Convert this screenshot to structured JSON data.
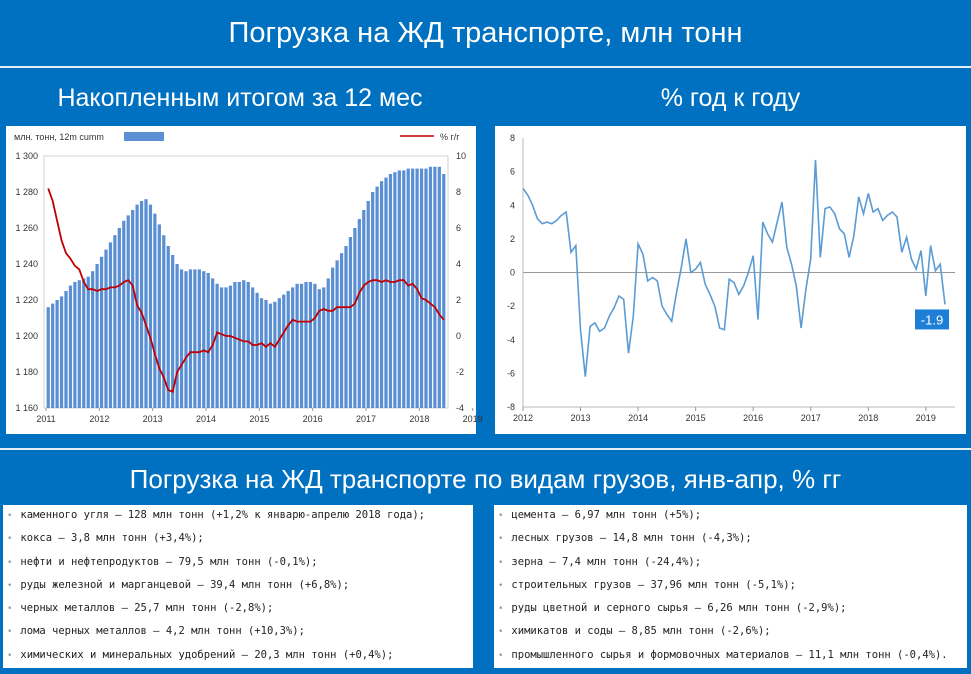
{
  "header": {
    "title": "Погрузка на ЖД транспорте, млн тонн",
    "left_subtitle": "Накопленным итогом за 12 мес",
    "right_subtitle": "% год к году",
    "section_title": "Погрузка на ЖД транспорте по видам грузов, янв-апр, % гг"
  },
  "colors": {
    "background": "#0070c0",
    "bar": "#5b8fd4",
    "line_red": "#c00000",
    "line_blue": "#5b9bd5",
    "label_box": "#1f7fd6"
  },
  "chart_data": [
    {
      "type": "bar",
      "legend_bar": "млн. тонн, 12m cumm",
      "legend_line": "% г/г",
      "x_tick_labels": [
        "2011",
        "2012",
        "2013",
        "2014",
        "2015",
        "2016",
        "2017",
        "2018",
        "2019"
      ],
      "y_left_ticks": [
        "1 160",
        "1 180",
        "1 200",
        "1 220",
        "1 240",
        "1 260",
        "1 280",
        "1 300"
      ],
      "y_right_ticks": [
        "-4",
        "-2",
        "0",
        "2",
        "4",
        "6",
        "8",
        "10"
      ],
      "ylim_left": [
        1160,
        1300
      ],
      "ylim_right": [
        -4,
        10
      ],
      "bar_series": [
        1216,
        1218,
        1220,
        1222,
        1225,
        1228,
        1230,
        1231,
        1232,
        1233,
        1236,
        1240,
        1244,
        1248,
        1252,
        1256,
        1260,
        1264,
        1267,
        1270,
        1273,
        1275,
        1276,
        1273,
        1268,
        1262,
        1256,
        1250,
        1245,
        1240,
        1237,
        1236,
        1237,
        1237,
        1237,
        1236,
        1235,
        1232,
        1229,
        1227,
        1227,
        1228,
        1230,
        1230,
        1231,
        1230,
        1227,
        1224,
        1221,
        1220,
        1218,
        1219,
        1221,
        1223,
        1225,
        1227,
        1229,
        1229,
        1230,
        1230,
        1229,
        1226,
        1227,
        1232,
        1238,
        1242,
        1246,
        1250,
        1255,
        1260,
        1265,
        1270,
        1275,
        1280,
        1283,
        1286,
        1288,
        1290,
        1291,
        1292,
        1292,
        1293,
        1293,
        1293,
        1293,
        1293,
        1294,
        1294,
        1294,
        1290
      ],
      "line_series": [
        8.2,
        7.5,
        6.4,
        5.3,
        4.6,
        4.3,
        3.9,
        3.7,
        3.0,
        2.6,
        2.6,
        2.5,
        2.6,
        2.6,
        2.7,
        2.7,
        2.8,
        3.0,
        3.1,
        2.8,
        1.7,
        1.3,
        0.6,
        -0.1,
        -1.0,
        -1.8,
        -2.3,
        -3.0,
        -3.1,
        -2.0,
        -1.6,
        -1.2,
        -0.9,
        -0.9,
        -0.9,
        -0.8,
        -0.9,
        -0.5,
        0.2,
        0.1,
        0.0,
        0.0,
        -0.1,
        -0.2,
        -0.3,
        -0.3,
        -0.5,
        -0.5,
        -0.4,
        -0.6,
        -0.4,
        -0.6,
        -0.2,
        0.2,
        0.6,
        0.9,
        0.8,
        0.8,
        0.8,
        0.8,
        1.0,
        1.4,
        1.5,
        1.4,
        1.4,
        1.6,
        1.6,
        1.6,
        1.6,
        1.8,
        2.4,
        2.8,
        3.0,
        3.1,
        3.1,
        3.0,
        3.1,
        3.0,
        3.0,
        3.1,
        3.1,
        2.8,
        2.9,
        2.6,
        2.1,
        2.0,
        1.8,
        1.6,
        1.2,
        0.9
      ]
    },
    {
      "type": "line",
      "x_tick_labels": [
        "2012",
        "2013",
        "2014",
        "2015",
        "2016",
        "2017",
        "2018",
        "2019"
      ],
      "y_ticks": [
        "-8",
        "-6",
        "-4",
        "-2",
        "0",
        "2",
        "4",
        "6",
        "8"
      ],
      "ylim": [
        -8,
        8
      ],
      "series": [
        5.0,
        4.6,
        4.0,
        3.2,
        2.9,
        3.0,
        2.9,
        3.1,
        3.4,
        3.6,
        1.2,
        1.6,
        -3.4,
        -6.2,
        -3.2,
        -3.0,
        -3.5,
        -3.3,
        -2.6,
        -2.1,
        -1.4,
        -1.6,
        -4.8,
        -2.6,
        1.7,
        1.1,
        -0.5,
        -0.3,
        -0.5,
        -2.0,
        -2.5,
        -2.9,
        -1.2,
        0.3,
        2.0,
        0.0,
        0.2,
        0.6,
        -0.7,
        -1.3,
        -2.0,
        -3.3,
        -3.4,
        -0.4,
        -0.6,
        -1.3,
        -0.8,
        0.0,
        1.0,
        -2.8,
        3.0,
        2.3,
        1.8,
        3.0,
        4.2,
        1.5,
        0.5,
        -0.8,
        -3.3,
        -1.0,
        0.8,
        6.7,
        0.9,
        3.8,
        3.9,
        3.5,
        2.6,
        2.3,
        0.9,
        2.2,
        4.5,
        3.5,
        4.7,
        3.6,
        3.8,
        3.1,
        3.4,
        3.6,
        3.3,
        1.2,
        2.1,
        0.8,
        0.2,
        1.3,
        -1.4,
        1.6,
        0.1,
        0.5,
        -1.9
      ],
      "last_value_label": "-1.9"
    }
  ],
  "lists": {
    "left": [
      "каменного угля – 128 млн тонн (+1,2% к январю-апрелю 2018 года);",
      "кокса – 3,8 млн тонн (+3,4%);",
      "нефти и нефтепродуктов – 79,5 млн тонн (-0,1%);",
      "руды железной и марганцевой – 39,4 млн тонн (+6,8%);",
      "черных металлов – 25,7 млн тонн (-2,8%);",
      "лома черных металлов – 4,2 млн тонн (+10,3%);",
      "химических и минеральных удобрений – 20,3 млн тонн (+0,4%);"
    ],
    "right": [
      "цемента – 6,97 млн тонн (+5%);",
      "лесных грузов – 14,8 млн тонн (-4,3%);",
      "зерна – 7,4 млн тонн (-24,4%);",
      "строительных грузов – 37,96 млн тонн (-5,1%);",
      "руды цветной и серного сырья – 6,26 млн тонн (-2,9%);",
      "химикатов и соды – 8,85 млн тонн (-2,6%);",
      "промышленного сырья и формовочных материалов – 11,1 млн тонн (-0,4%)."
    ]
  }
}
